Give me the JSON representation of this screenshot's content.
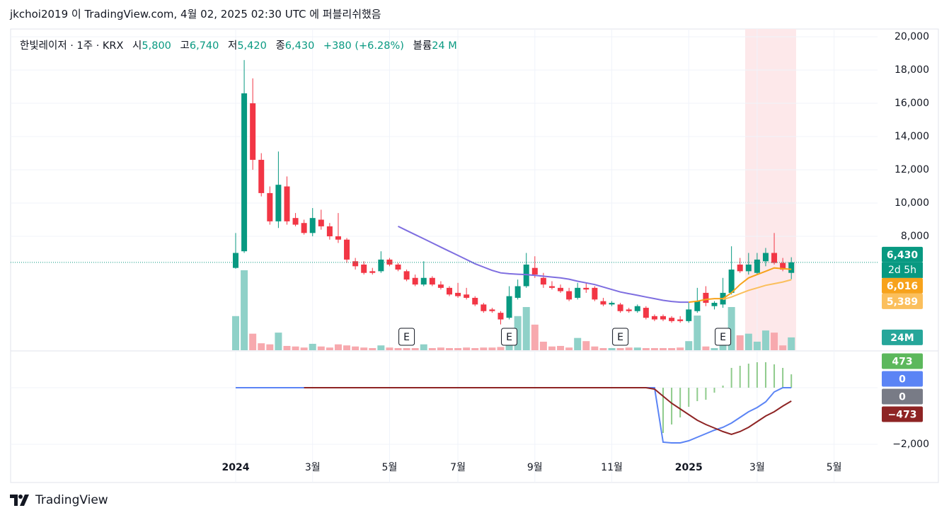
{
  "header": {
    "title": "jkchoi2019 이 TradingView.com, 4월 02, 2025 02:30 UTC 에 퍼블리쉬했음"
  },
  "legend": {
    "symbol": "한빛레이저 · 1주 · KRX",
    "open_label": "시",
    "open": "5,800",
    "high_label": "고",
    "high": "6,740",
    "low_label": "저",
    "low": "5,420",
    "close_label": "종",
    "close": "6,430",
    "change": "+380 (+6.28%)",
    "volume_label": "볼륨",
    "volume": "24 M"
  },
  "footer": {
    "brand": "TradingView"
  },
  "chart_data": [
    {
      "type": "candlestick",
      "categories": [
        "2024",
        null,
        null,
        null,
        null,
        null,
        null,
        null,
        null,
        "3월",
        null,
        null,
        null,
        null,
        null,
        null,
        null,
        null,
        "5월",
        null,
        null,
        null,
        null,
        null,
        null,
        null,
        "7월",
        null,
        null,
        null,
        null,
        null,
        null,
        null,
        null,
        "9월",
        null,
        null,
        null,
        null,
        null,
        null,
        null,
        null,
        "11월",
        null,
        null,
        null,
        null,
        null,
        null,
        null,
        null,
        "2025",
        null,
        null,
        null,
        null,
        null,
        null,
        null,
        "3월",
        null,
        null,
        null,
        null,
        null,
        null,
        null,
        null,
        "5월"
      ],
      "open": [
        6100,
        7100,
        16000,
        12600,
        10600,
        8900,
        11000,
        9100,
        8800,
        8200,
        9000,
        8600,
        8000,
        7800,
        6500,
        6300,
        5900,
        5900,
        6600,
        6300,
        5900,
        5500,
        5100,
        5500,
        5100,
        4900,
        4600,
        4500,
        4300,
        3900,
        3600,
        3400,
        3100,
        4300,
        5000,
        6100,
        5500,
        5000,
        4900,
        4700,
        4300,
        4900,
        4900,
        4100,
        3900,
        3900,
        3600,
        3500,
        3700,
        3200,
        3200,
        3100,
        3000,
        2900,
        3500,
        4600,
        3800,
        3900,
        4600,
        6300,
        5900,
        5800,
        6500,
        7000,
        6400,
        5800,
        null,
        null,
        null,
        null,
        null
      ],
      "high": [
        8200,
        18600,
        17500,
        13000,
        11000,
        13100,
        11600,
        9400,
        9000,
        9700,
        9600,
        8800,
        9400,
        7900,
        6700,
        6500,
        6100,
        7100,
        6700,
        6400,
        6000,
        5700,
        6500,
        5600,
        5300,
        5000,
        5200,
        4900,
        4400,
        4000,
        3700,
        3500,
        5000,
        5400,
        7000,
        6800,
        5800,
        5300,
        5100,
        4900,
        5200,
        5200,
        5000,
        4300,
        4100,
        4000,
        3700,
        3900,
        3800,
        3300,
        3300,
        3200,
        3200,
        4000,
        4900,
        5000,
        4100,
        5500,
        7400,
        6700,
        7000,
        7000,
        7300,
        8200,
        6700,
        6740,
        null,
        null,
        null,
        null,
        null
      ],
      "low": [
        6050,
        7000,
        12000,
        10400,
        8700,
        8500,
        8700,
        8600,
        8100,
        8000,
        8400,
        7800,
        7600,
        6400,
        6000,
        5700,
        5700,
        5800,
        6200,
        5900,
        5300,
        5000,
        5000,
        5000,
        4800,
        4400,
        4300,
        4200,
        3800,
        3400,
        3400,
        2700,
        3000,
        4200,
        4900,
        5500,
        4900,
        4800,
        4600,
        4100,
        4200,
        4600,
        4100,
        3800,
        3800,
        3400,
        3400,
        3400,
        3000,
        2900,
        2900,
        2800,
        2800,
        2800,
        3400,
        3800,
        3600,
        3700,
        4500,
        5800,
        5700,
        5700,
        6200,
        6300,
        5900,
        5420,
        null,
        null,
        null,
        null,
        null
      ],
      "close": [
        7000,
        16600,
        12600,
        10600,
        8900,
        11100,
        8900,
        8700,
        8200,
        9100,
        8600,
        8000,
        7800,
        6600,
        6200,
        5800,
        5800,
        6600,
        6300,
        6000,
        5400,
        5100,
        5500,
        5100,
        4900,
        4500,
        4400,
        4300,
        3900,
        3500,
        3500,
        3000,
        4400,
        5000,
        6300,
        5700,
        5100,
        4900,
        4700,
        4200,
        4900,
        4800,
        4200,
        3900,
        4000,
        3500,
        3500,
        3800,
        3100,
        3000,
        3000,
        2900,
        2900,
        3600,
        4100,
        4000,
        4000,
        4600,
        6000,
        5900,
        6300,
        6600,
        7000,
        6400,
        6000,
        6430,
        null,
        null,
        null,
        null,
        null
      ],
      "close_label": "6,430",
      "countdown": "2d 5h",
      "colors": {
        "up": "#089981",
        "down": "#f23645",
        "up_volume": "#8fd1c8",
        "down_volume": "#f7a9ae",
        "last_line": "#089981",
        "highlight": "#fde8ea"
      },
      "ylim": [
        1150,
        20468
      ],
      "yticks": [
        {
          "value": 8000,
          "label": "8,000"
        },
        {
          "value": 10000,
          "label": "10,000"
        },
        {
          "value": 12000,
          "label": "12,000"
        },
        {
          "value": 14000,
          "label": "14,000"
        },
        {
          "value": 16000,
          "label": "16,000"
        },
        {
          "value": 18000,
          "label": "18,000"
        },
        {
          "value": 20000,
          "label": "20,000"
        }
      ],
      "grid": true,
      "overlays": [
        {
          "color": "#7e6ee0",
          "values": [
            null,
            null,
            null,
            null,
            null,
            null,
            null,
            null,
            null,
            null,
            null,
            null,
            null,
            null,
            null,
            null,
            null,
            null,
            null,
            8600,
            8350,
            8100,
            7850,
            7600,
            7350,
            7100,
            6850,
            6600,
            6350,
            6150,
            5950,
            5800,
            5750,
            5720,
            5700,
            5650,
            5600,
            5550,
            5500,
            5420,
            5300,
            5200,
            5100,
            4950,
            4800,
            4650,
            4550,
            4450,
            4350,
            4250,
            4150,
            4080,
            4040,
            4040,
            null,
            null,
            null,
            null,
            null,
            null,
            null,
            null,
            null,
            null,
            null,
            null,
            null,
            null,
            null,
            null,
            null
          ]
        },
        {
          "color": "#f7a21b",
          "last_label": "6,016",
          "values": [
            null,
            null,
            null,
            null,
            null,
            null,
            null,
            null,
            null,
            null,
            null,
            null,
            null,
            null,
            null,
            null,
            null,
            null,
            null,
            null,
            null,
            null,
            null,
            null,
            null,
            null,
            null,
            null,
            null,
            null,
            null,
            null,
            null,
            null,
            null,
            null,
            null,
            null,
            null,
            null,
            null,
            null,
            null,
            null,
            null,
            null,
            null,
            null,
            null,
            null,
            null,
            null,
            null,
            4040,
            4100,
            4200,
            4250,
            4250,
            4600,
            5100,
            5500,
            5700,
            5900,
            6100,
            6050,
            6016,
            null,
            null,
            null,
            null,
            null
          ]
        },
        {
          "color": "#fbbf5c",
          "last_label": "5,389",
          "values": [
            null,
            null,
            null,
            null,
            null,
            null,
            null,
            null,
            null,
            null,
            null,
            null,
            null,
            null,
            null,
            null,
            null,
            null,
            null,
            null,
            null,
            null,
            null,
            null,
            null,
            null,
            null,
            null,
            null,
            null,
            null,
            null,
            null,
            null,
            null,
            null,
            null,
            null,
            null,
            null,
            null,
            null,
            null,
            null,
            null,
            null,
            null,
            null,
            null,
            null,
            null,
            null,
            null,
            null,
            null,
            null,
            null,
            4200,
            4350,
            4550,
            4750,
            4900,
            5050,
            5150,
            5250,
            5389,
            null,
            null,
            null,
            null,
            null
          ]
        }
      ],
      "volume": {
        "badge_color": "#26a69a",
        "last_label": "24M",
        "values": [
          64,
          150,
          31,
          13,
          11,
          33,
          8,
          7,
          5,
          12,
          7,
          5,
          11,
          9,
          7,
          5,
          4,
          9,
          5,
          4,
          4,
          4,
          11,
          4,
          5,
          4,
          4,
          5,
          4,
          5,
          5,
          6,
          27,
          64,
          81,
          48,
          16,
          7,
          8,
          5,
          23,
          17,
          7,
          4,
          4,
          4,
          5,
          5,
          4,
          4,
          4,
          4,
          5,
          17,
          65,
          7,
          4,
          11,
          81,
          28,
          31,
          16,
          37,
          33,
          9,
          24,
          null,
          null,
          null,
          null,
          null
        ]
      },
      "events": [
        null,
        null,
        null,
        null,
        null,
        null,
        null,
        null,
        null,
        null,
        null,
        null,
        null,
        null,
        null,
        null,
        null,
        null,
        null,
        null,
        "E",
        null,
        null,
        null,
        null,
        null,
        null,
        null,
        null,
        null,
        null,
        null,
        "E",
        null,
        null,
        null,
        null,
        null,
        null,
        null,
        null,
        null,
        null,
        null,
        null,
        "E",
        null,
        null,
        null,
        null,
        null,
        null,
        null,
        null,
        null,
        null,
        null,
        "E",
        null,
        null,
        null,
        null,
        null,
        null,
        null,
        null,
        null,
        null,
        null,
        null,
        null
      ]
    },
    {
      "type": "macd",
      "ylim": [
        -3350,
        1325
      ],
      "yticks": [
        {
          "value": -2000,
          "label": "−2,000"
        },
        0
      ],
      "zero_color": "#787b86",
      "histogram": {
        "color": "#8fcb8c",
        "badge_color": "#5cb85c",
        "values": [
          null,
          null,
          null,
          null,
          null,
          null,
          null,
          null,
          null,
          null,
          null,
          null,
          null,
          null,
          null,
          null,
          null,
          null,
          null,
          null,
          null,
          null,
          null,
          null,
          null,
          null,
          null,
          null,
          null,
          null,
          null,
          null,
          null,
          null,
          null,
          null,
          null,
          null,
          null,
          null,
          null,
          null,
          null,
          null,
          null,
          null,
          null,
          null,
          null,
          null,
          -1600,
          -1300,
          -1050,
          -675,
          -475,
          -425,
          -175,
          75,
          700,
          775,
          850,
          900,
          900,
          825,
          700,
          473,
          null,
          null,
          null,
          null,
          null
        ],
        "last_label": "473"
      },
      "series": [
        {
          "color": "#5b84f5",
          "last_label": "0",
          "values": [
            0,
            0,
            0,
            0,
            0,
            0,
            0,
            0,
            0,
            0,
            0,
            0,
            0,
            0,
            0,
            0,
            0,
            0,
            0,
            0,
            0,
            0,
            0,
            0,
            0,
            0,
            0,
            0,
            0,
            0,
            0,
            0,
            0,
            0,
            0,
            0,
            0,
            0,
            0,
            0,
            0,
            0,
            0,
            0,
            0,
            0,
            0,
            0,
            0,
            0,
            -1925,
            -1950,
            -1950,
            -1875,
            -1750,
            -1625,
            -1500,
            -1400,
            -1250,
            -1050,
            -850,
            -700,
            -500,
            -150,
            0,
            0,
            null,
            null,
            null,
            null,
            null
          ]
        },
        {
          "color": "#8e2424",
          "last_label": "−473",
          "values": [
            null,
            null,
            null,
            null,
            null,
            null,
            null,
            null,
            0,
            0,
            0,
            0,
            0,
            0,
            0,
            0,
            0,
            0,
            0,
            0,
            0,
            0,
            0,
            0,
            0,
            0,
            0,
            0,
            0,
            0,
            0,
            0,
            0,
            0,
            0,
            0,
            0,
            0,
            0,
            0,
            0,
            0,
            0,
            0,
            0,
            0,
            0,
            0,
            0,
            -50,
            -300,
            -550,
            -750,
            -950,
            -1150,
            -1300,
            -1425,
            -1550,
            -1650,
            -1550,
            -1400,
            -1200,
            -1000,
            -850,
            -650,
            -473,
            null,
            null,
            null,
            null,
            null
          ]
        }
      ]
    }
  ]
}
